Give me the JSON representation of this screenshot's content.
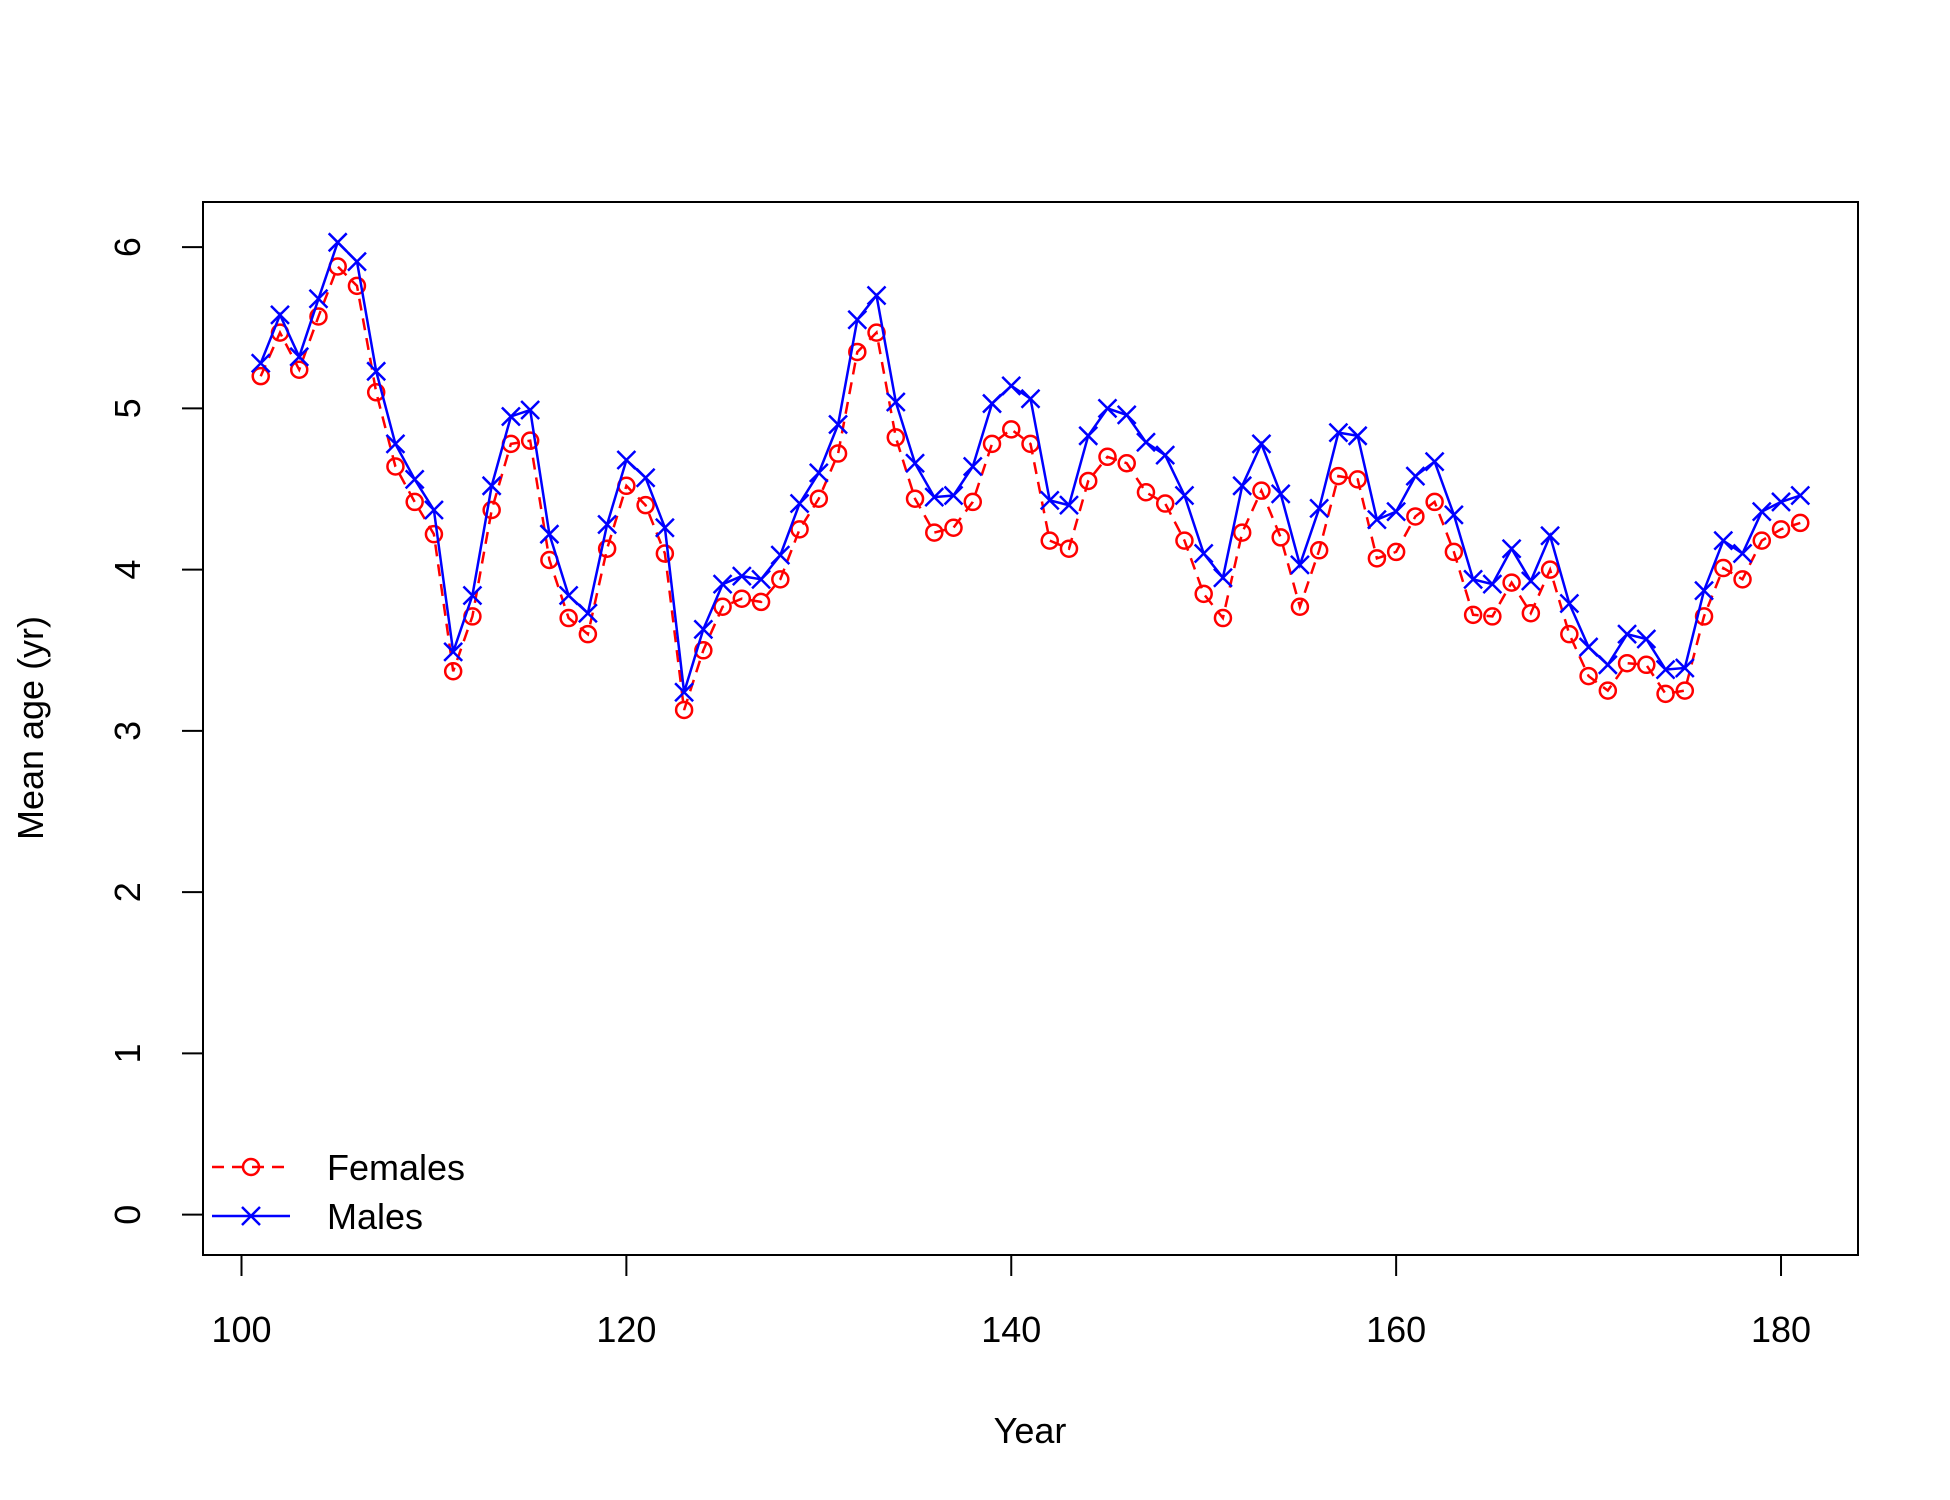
{
  "chart_data": {
    "type": "line",
    "title": "",
    "xlabel": "Year",
    "ylabel": "Mean age (yr)",
    "xlim": [
      98,
      184
    ],
    "ylim": [
      -0.25,
      6.28
    ],
    "xticks": [
      100,
      120,
      140,
      160,
      180
    ],
    "yticks": [
      0,
      1,
      2,
      3,
      4,
      5,
      6
    ],
    "grid": false,
    "legend": {
      "position": "bottom-left"
    },
    "x": [
      101,
      102,
      103,
      104,
      105,
      106,
      107,
      108,
      109,
      110,
      111,
      112,
      113,
      114,
      115,
      116,
      117,
      118,
      119,
      120,
      121,
      122,
      123,
      124,
      125,
      126,
      127,
      128,
      129,
      130,
      131,
      132,
      133,
      134,
      135,
      136,
      137,
      138,
      139,
      140,
      141,
      142,
      143,
      144,
      145,
      146,
      147,
      148,
      149,
      150,
      151,
      152,
      153,
      154,
      155,
      156,
      157,
      158,
      159,
      160,
      161,
      162,
      163,
      164,
      165,
      166,
      167,
      168,
      169,
      170,
      171,
      172,
      173,
      174,
      175,
      176,
      177,
      178,
      179,
      180,
      181
    ],
    "series": [
      {
        "name": "Females",
        "color": "#ff0000",
        "line": "dashed",
        "marker": "circle",
        "values": [
          5.2,
          5.47,
          5.24,
          5.57,
          5.88,
          5.76,
          5.1,
          4.64,
          4.42,
          4.22,
          3.37,
          3.71,
          4.37,
          4.78,
          4.8,
          4.06,
          3.7,
          3.6,
          4.13,
          4.52,
          4.4,
          4.1,
          3.13,
          3.5,
          3.77,
          3.82,
          3.8,
          3.94,
          4.25,
          4.44,
          4.72,
          5.35,
          5.47,
          4.82,
          4.44,
          4.23,
          4.26,
          4.42,
          4.78,
          4.87,
          4.78,
          4.18,
          4.13,
          4.55,
          4.7,
          4.66,
          4.48,
          4.41,
          4.18,
          3.85,
          3.7,
          4.23,
          4.49,
          4.2,
          3.77,
          4.12,
          4.58,
          4.56,
          4.07,
          4.11,
          4.33,
          4.42,
          4.11,
          3.72,
          3.71,
          3.92,
          3.73,
          4.0,
          3.6,
          3.34,
          3.25,
          3.42,
          3.41,
          3.23,
          3.25,
          3.71,
          4.01,
          3.94,
          4.18,
          4.25,
          4.29
        ]
      },
      {
        "name": "Males",
        "color": "#0000ff",
        "line": "solid",
        "marker": "x",
        "values": [
          5.28,
          5.58,
          5.32,
          5.68,
          6.03,
          5.91,
          5.23,
          4.78,
          4.56,
          4.37,
          3.49,
          3.84,
          4.52,
          4.95,
          4.99,
          4.22,
          3.84,
          3.73,
          4.28,
          4.68,
          4.57,
          4.26,
          3.24,
          3.63,
          3.91,
          3.96,
          3.94,
          4.09,
          4.41,
          4.6,
          4.9,
          5.55,
          5.7,
          5.04,
          4.66,
          4.45,
          4.46,
          4.64,
          5.03,
          5.14,
          5.06,
          4.43,
          4.4,
          4.83,
          5.0,
          4.96,
          4.79,
          4.71,
          4.46,
          4.1,
          3.95,
          4.52,
          4.78,
          4.47,
          4.03,
          4.38,
          4.85,
          4.83,
          4.31,
          4.36,
          4.58,
          4.67,
          4.34,
          3.94,
          3.91,
          4.13,
          3.93,
          4.21,
          3.79,
          3.52,
          3.41,
          3.6,
          3.57,
          3.38,
          3.39,
          3.87,
          4.18,
          4.1,
          4.36,
          4.42,
          4.46
        ]
      }
    ]
  }
}
